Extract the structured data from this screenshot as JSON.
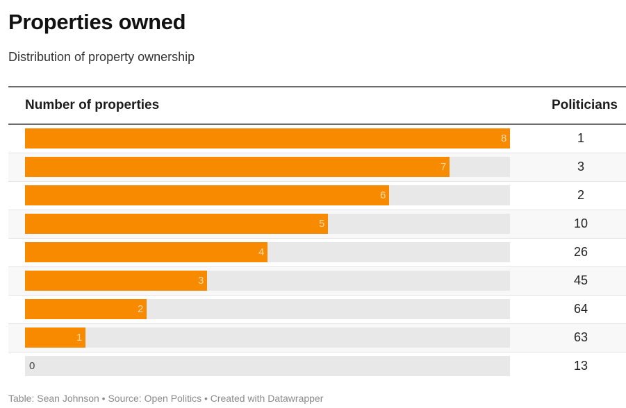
{
  "title": "Properties owned",
  "subtitle": "Distribution of property ownership",
  "footer": "Table: Sean Johnson • Source: Open Politics • Created with Datawrapper",
  "colors": {
    "bar": "#f88a00",
    "track": "#e8e8e8"
  },
  "chart_data": {
    "type": "table",
    "title": "Properties owned",
    "subtitle": "Distribution of property ownership",
    "columns": [
      "Number of properties",
      "Politicians"
    ],
    "bar_max": 8,
    "rows": [
      {
        "properties": 8,
        "politicians": 1
      },
      {
        "properties": 7,
        "politicians": 3
      },
      {
        "properties": 6,
        "politicians": 2
      },
      {
        "properties": 5,
        "politicians": 10
      },
      {
        "properties": 4,
        "politicians": 26
      },
      {
        "properties": 3,
        "politicians": 45
      },
      {
        "properties": 2,
        "politicians": 64
      },
      {
        "properties": 1,
        "politicians": 63
      },
      {
        "properties": 0,
        "politicians": 13
      }
    ]
  }
}
